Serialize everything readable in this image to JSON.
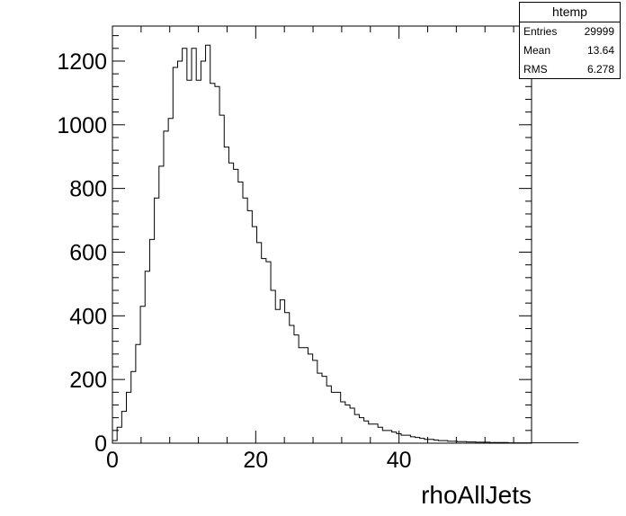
{
  "chart_data": {
    "type": "bar",
    "title": "",
    "xlabel": "rhoAllJets",
    "ylabel": "",
    "xlim": [
      0,
      58.5
    ],
    "ylim": [
      0,
      1310
    ],
    "x_ticks": [
      0,
      20,
      40
    ],
    "y_ticks": [
      0,
      200,
      400,
      600,
      800,
      1000,
      1200
    ],
    "bin_width": 0.65,
    "values": [
      8,
      50,
      100,
      160,
      225,
      310,
      430,
      540,
      640,
      770,
      870,
      980,
      1020,
      1180,
      1200,
      1240,
      1140,
      1240,
      1140,
      1200,
      1250,
      1130,
      1120,
      1030,
      930,
      880,
      860,
      820,
      770,
      730,
      680,
      630,
      580,
      570,
      480,
      420,
      450,
      410,
      370,
      340,
      300,
      300,
      280,
      260,
      220,
      210,
      180,
      160,
      160,
      130,
      120,
      110,
      90,
      80,
      70,
      60,
      60,
      50,
      40,
      40,
      35,
      30,
      25,
      25,
      20,
      18,
      15,
      12,
      12,
      10,
      8,
      8,
      6,
      6,
      5,
      5,
      4,
      4,
      3,
      3,
      3,
      2,
      2,
      2,
      2,
      1,
      1,
      1,
      1,
      1,
      1,
      1,
      1,
      1,
      1,
      1,
      1,
      1,
      1,
      1
    ],
    "grid": false,
    "legend": "none"
  },
  "stats": {
    "name": "htemp",
    "rows": [
      {
        "label": "Entries",
        "value": "29999"
      },
      {
        "label": "Mean",
        "value": "13.64"
      },
      {
        "label": "RMS",
        "value": "6.278"
      }
    ]
  }
}
